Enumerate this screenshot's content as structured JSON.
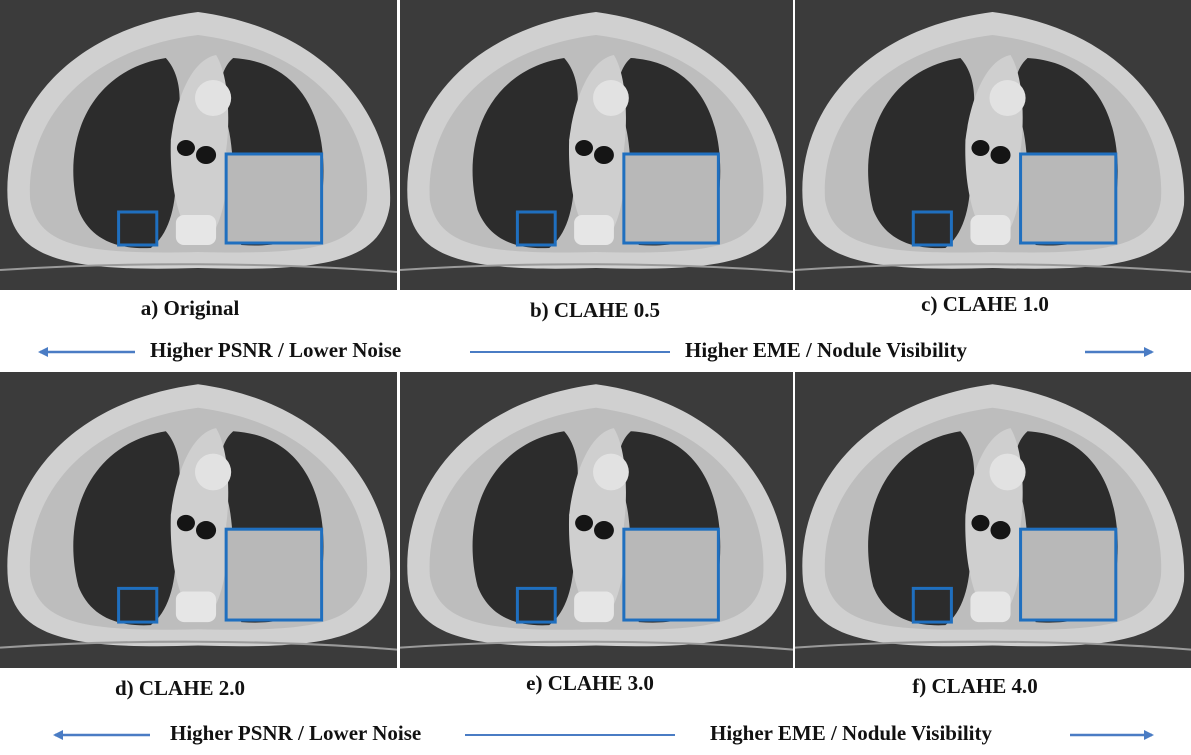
{
  "panels": [
    {
      "caption": "a) Original"
    },
    {
      "caption": "b) CLAHE 0.5"
    },
    {
      "caption": "c) CLAHE 1.0"
    },
    {
      "caption": "d) CLAHE 2.0"
    },
    {
      "caption": "e) CLAHE 3.0"
    },
    {
      "caption": "f) CLAHE 4.0"
    }
  ],
  "arrow_rows": [
    {
      "left": "Higher PSNR / Lower Noise",
      "right": "Higher EME / Nodule Visibility"
    },
    {
      "left": "Higher PSNR / Lower Noise",
      "right": "Higher EME / Nodule Visibility"
    }
  ]
}
